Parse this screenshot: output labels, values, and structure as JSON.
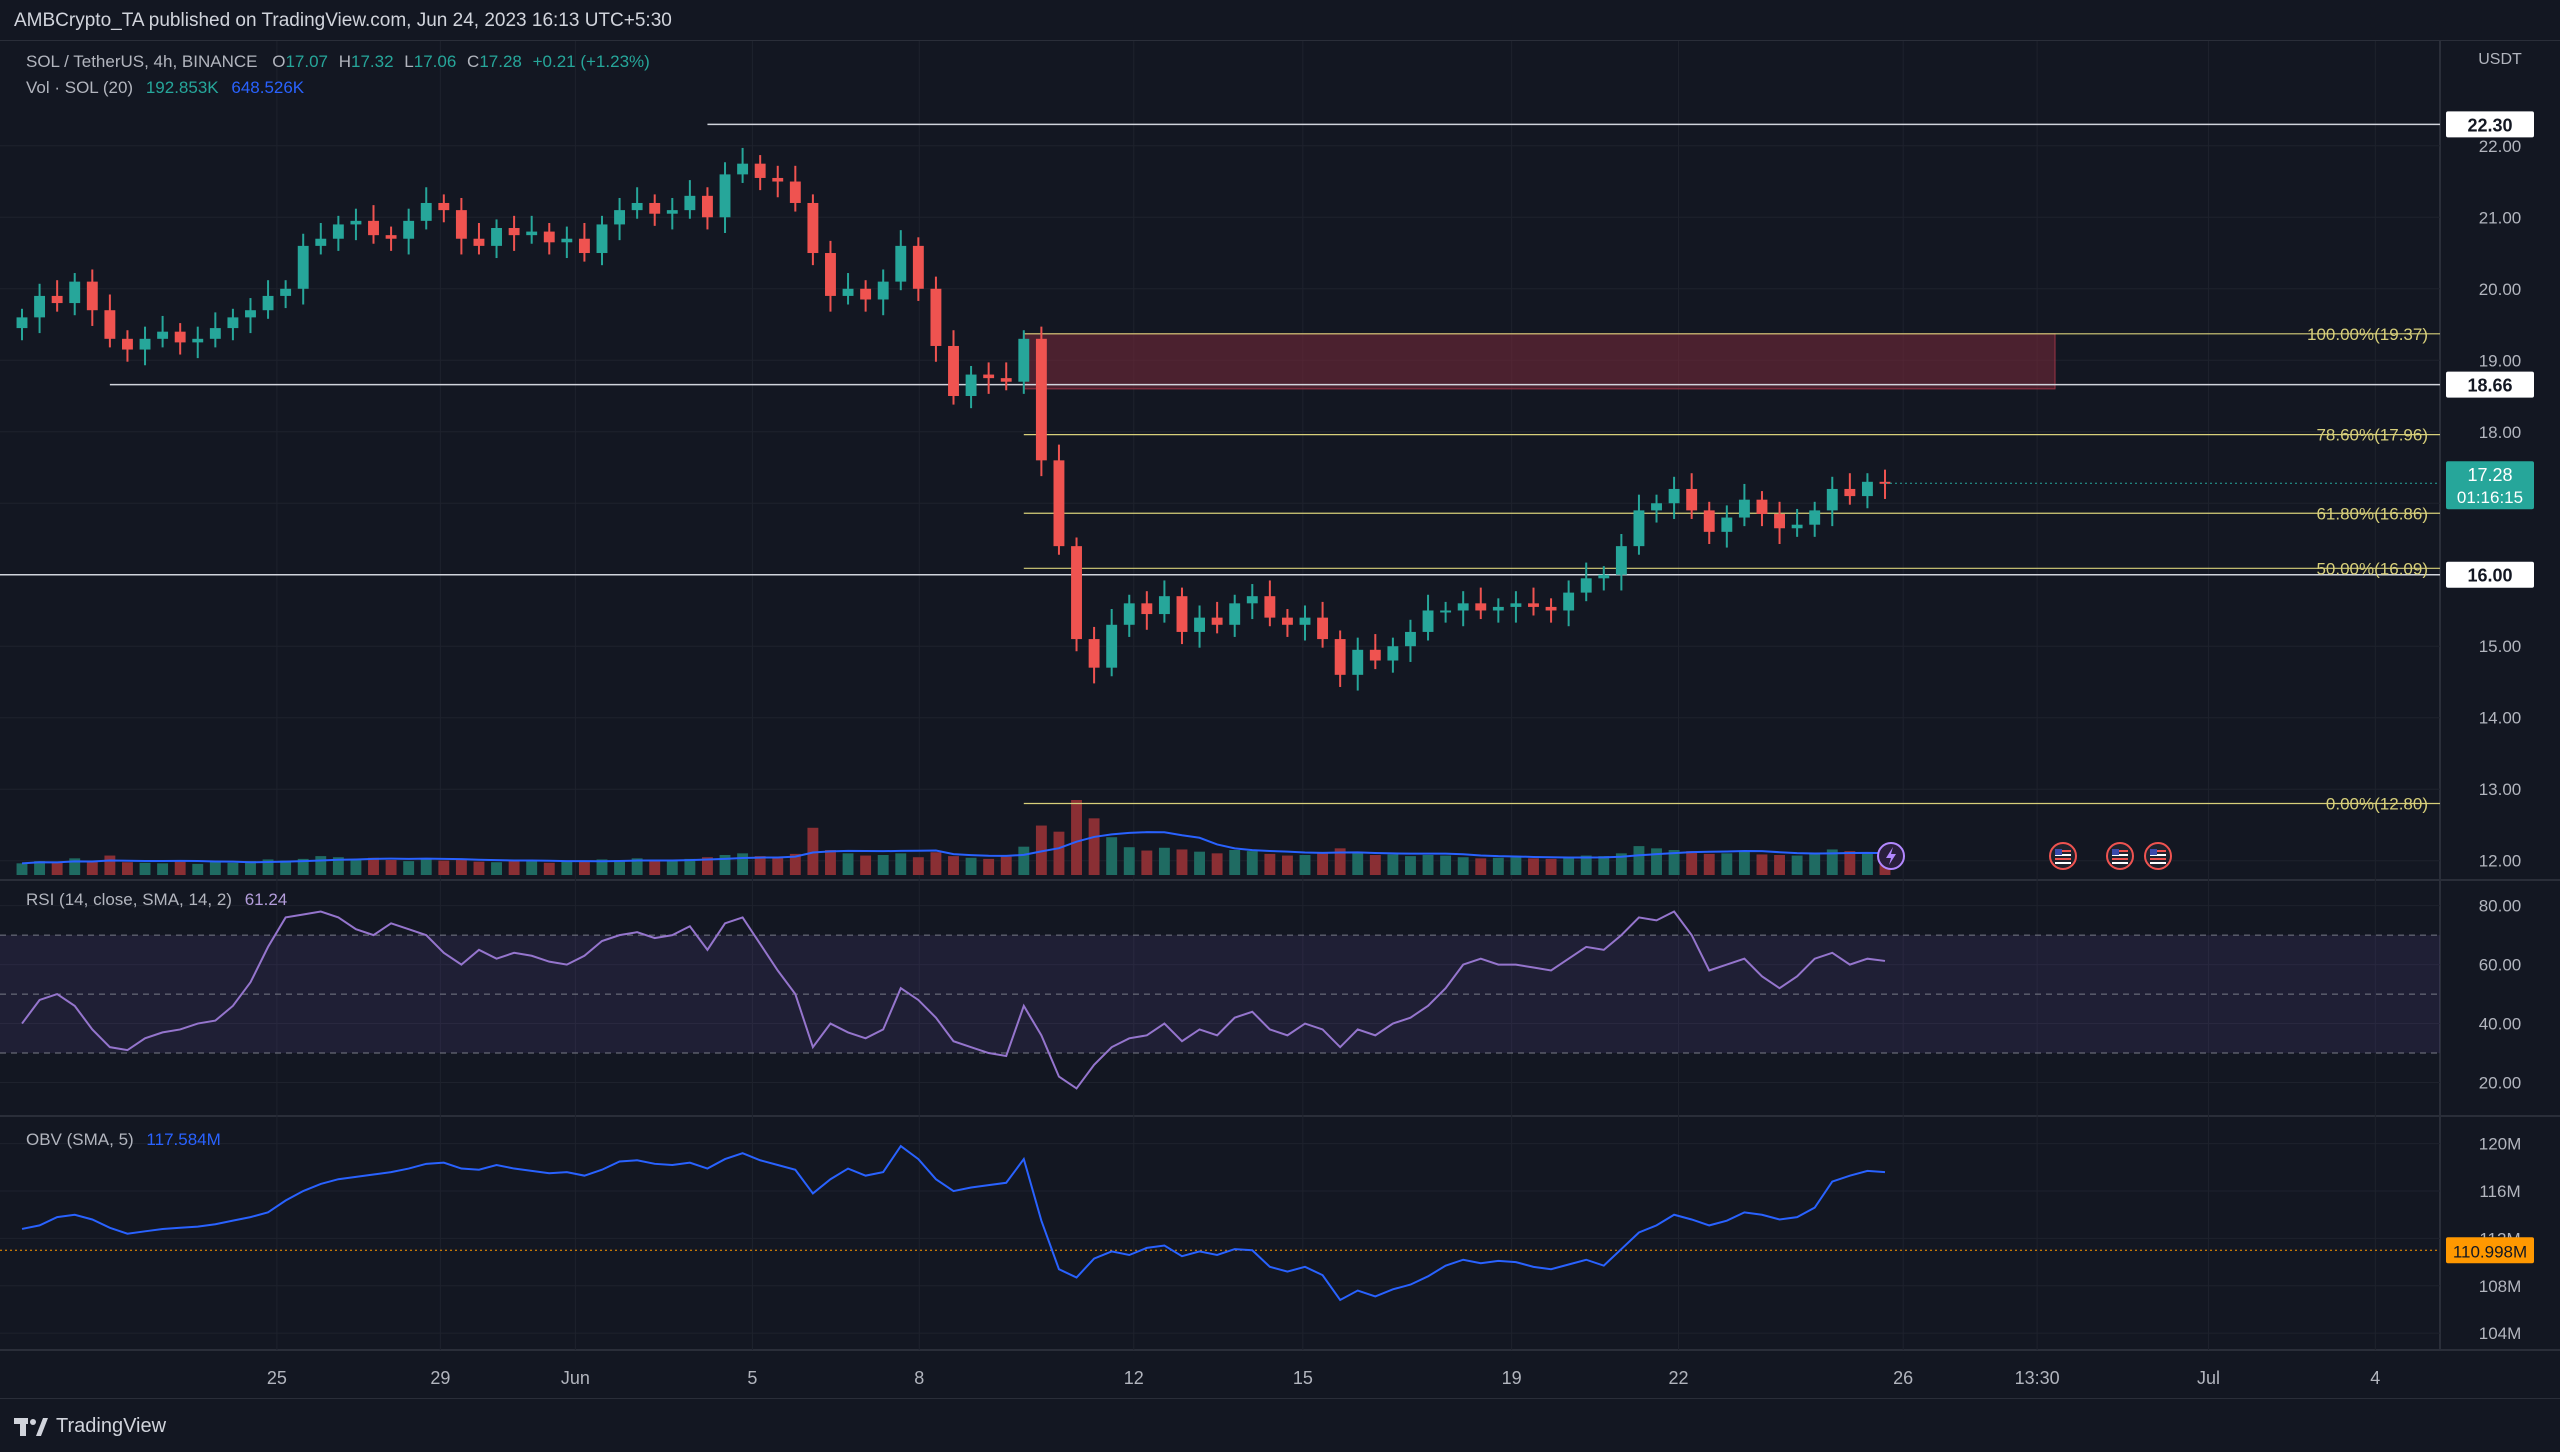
{
  "header": {
    "publisher": "AMBCrypto_TA published on TradingView.com, Jun 24, 2023 16:13 UTC+5:30"
  },
  "legend": {
    "symbol": "SOL / TetherUS, 4h, BINANCE",
    "o_label": "O",
    "o": "17.07",
    "h_label": "H",
    "h": "17.32",
    "l_label": "L",
    "l": "17.06",
    "c_label": "C",
    "c": "17.28",
    "change": "+0.21 (+1.23%)",
    "vol_label": "Vol · SOL (20)",
    "vol_value": "192.853K",
    "vol_ma": "648.526K",
    "rsi_label": "RSI (14, close, SMA, 14, 2)",
    "rsi_value": "61.24",
    "obv_label": "OBV (SMA, 5)",
    "obv_value": "117.584M"
  },
  "footer": {
    "brand": "TradingView"
  },
  "colors": {
    "background": "#131722",
    "up": "#26a69a",
    "down": "#ef5350",
    "fib": "#d7cf7a",
    "zone": "#7a2a3a",
    "rsi": "#9575cd",
    "obv": "#2962ff",
    "price_tag": "#26a69a",
    "obv_ref_tag": "#ff9800"
  },
  "chart_data": [
    {
      "type": "candlestick",
      "pane": "price",
      "currency": "USDT",
      "y_ticks": [
        "22.00",
        "21.00",
        "20.00",
        "19.00",
        "18.00",
        "17.00",
        "16.00",
        "15.00",
        "14.00",
        "13.00",
        "12.00"
      ],
      "ylim": [
        11.8,
        23.2
      ],
      "x_ticks": [
        "25",
        "29",
        "Jun",
        "5",
        "8",
        "12",
        "15",
        "19",
        "22",
        "26",
        "13:30",
        "Jul",
        "4"
      ],
      "x_tick_pos": [
        2.44,
        3.88,
        5.07,
        6.63,
        8.1,
        9.99,
        11.48,
        13.32,
        14.79,
        16.77,
        17.95,
        19.46,
        20.93
      ],
      "x_range": [
        0,
        21.5
      ],
      "closes": [
        19.6,
        19.9,
        19.8,
        20.1,
        19.7,
        19.3,
        19.15,
        19.3,
        19.4,
        19.25,
        19.3,
        19.45,
        19.6,
        19.7,
        19.9,
        20.0,
        20.6,
        20.7,
        20.9,
        20.95,
        20.75,
        20.7,
        20.95,
        21.2,
        21.1,
        20.7,
        20.6,
        20.85,
        20.75,
        20.8,
        20.65,
        20.7,
        20.5,
        20.9,
        21.1,
        21.2,
        21.05,
        21.1,
        21.3,
        21.0,
        21.6,
        21.75,
        21.55,
        21.5,
        21.2,
        20.5,
        19.9,
        20.0,
        19.85,
        20.1,
        20.6,
        20.0,
        19.2,
        18.5,
        18.8,
        18.75,
        18.7,
        19.3,
        17.6,
        16.4,
        15.1,
        14.7,
        15.3,
        15.6,
        15.45,
        15.7,
        15.2,
        15.4,
        15.3,
        15.6,
        15.7,
        15.4,
        15.3,
        15.4,
        15.1,
        14.6,
        14.95,
        14.8,
        15.0,
        15.2,
        15.5,
        15.5,
        15.6,
        15.5,
        15.55,
        15.6,
        15.55,
        15.5,
        15.75,
        15.95,
        16.0,
        16.4,
        16.9,
        17.0,
        17.2,
        16.9,
        16.6,
        16.8,
        17.05,
        16.85,
        16.65,
        16.7,
        16.9,
        17.2,
        17.1,
        17.3,
        17.28
      ],
      "volume": [
        2.1,
        2.5,
        2.2,
        3.0,
        2.4,
        3.5,
        2.3,
        2.2,
        2.1,
        2.6,
        2.0,
        2.4,
        2.2,
        2.5,
        2.8,
        2.6,
        2.9,
        3.4,
        3.2,
        2.8,
        3.1,
        2.7,
        2.5,
        3.0,
        2.6,
        2.9,
        2.4,
        2.3,
        2.5,
        2.6,
        2.2,
        2.4,
        2.6,
        2.8,
        2.7,
        3.0,
        2.5,
        2.6,
        2.9,
        3.2,
        3.6,
        3.9,
        3.4,
        3.1,
        3.8,
        8.5,
        4.5,
        3.9,
        3.5,
        3.6,
        3.9,
        3.2,
        4.1,
        3.4,
        3.1,
        2.9,
        3.3,
        5.1,
        8.9,
        7.8,
        13.5,
        10.2,
        6.8,
        5.0,
        4.4,
        4.9,
        4.6,
        4.2,
        3.9,
        4.5,
        4.3,
        3.8,
        3.5,
        3.6,
        4.0,
        4.8,
        4.1,
        3.6,
        3.7,
        3.4,
        3.6,
        3.5,
        3.2,
        3.0,
        3.1,
        3.2,
        3.0,
        2.9,
        3.3,
        3.5,
        3.4,
        3.9,
        5.2,
        4.8,
        4.5,
        4.3,
        3.8,
        3.9,
        4.2,
        3.7,
        3.6,
        3.5,
        3.9,
        4.6,
        4.3,
        4.1,
        3.8
      ],
      "volume_ma_values": "derived (20)",
      "levels": [
        {
          "label": "22.30",
          "value": 22.3,
          "color": "white"
        },
        {
          "label": "18.66",
          "value": 18.66,
          "color": "white"
        },
        {
          "label": "16.00",
          "value": 16.0,
          "color": "white"
        }
      ],
      "fibonacci": [
        {
          "label": "100.00%(19.37)",
          "value": 19.37
        },
        {
          "label": "78.60%(17.96)",
          "value": 17.96
        },
        {
          "label": "61.80%(16.86)",
          "value": 16.86
        },
        {
          "label": "50.00%(16.09)",
          "value": 16.09
        },
        {
          "label": "0.00%(12.80)",
          "value": 12.8
        }
      ],
      "supply_zone": {
        "from": 18.6,
        "to": 19.37
      },
      "last_price": "17.28",
      "countdown": "01:16:15",
      "event_icons": [
        "lightning-icon",
        "us-flag-icon",
        "us-flag-icon",
        "us-flag-icon"
      ]
    },
    {
      "type": "line",
      "pane": "rsi",
      "y_ticks": [
        "80.00",
        "60.00",
        "40.00",
        "20.00"
      ],
      "ylim": [
        10,
        87
      ],
      "band": [
        30,
        70
      ],
      "midline": 50,
      "values": [
        40,
        48,
        50,
        46,
        38,
        32,
        31,
        35,
        37,
        38,
        40,
        41,
        46,
        54,
        66,
        76,
        77,
        78,
        76,
        72,
        70,
        74,
        72,
        70,
        64,
        60,
        65,
        62,
        64,
        63,
        61,
        60,
        63,
        68,
        70,
        71,
        69,
        70,
        73,
        65,
        74,
        76,
        67,
        58,
        50,
        32,
        40,
        37,
        35,
        38,
        52,
        48,
        42,
        34,
        32,
        30,
        29,
        46,
        36,
        22,
        18,
        26,
        32,
        35,
        36,
        40,
        34,
        38,
        36,
        42,
        44,
        38,
        36,
        40,
        38,
        32,
        38,
        36,
        40,
        42,
        46,
        52,
        60,
        62,
        60,
        60,
        59,
        58,
        62,
        66,
        65,
        70,
        76,
        75,
        78,
        70,
        58,
        60,
        62,
        56,
        52,
        56,
        62,
        64,
        60,
        62,
        61.24
      ]
    },
    {
      "type": "line",
      "pane": "obv",
      "y_ticks": [
        "120M",
        "116M",
        "112M",
        "108M",
        "104M"
      ],
      "ylim": [
        103,
        122
      ],
      "reference_level": {
        "label": "110.998M",
        "value": 110.998
      },
      "values": [
        112.8,
        113.1,
        113.8,
        114.0,
        113.6,
        112.9,
        112.4,
        112.6,
        112.8,
        112.9,
        113.0,
        113.2,
        113.5,
        113.8,
        114.2,
        115.2,
        116.0,
        116.6,
        117.0,
        117.2,
        117.4,
        117.6,
        117.9,
        118.3,
        118.4,
        117.9,
        117.8,
        118.2,
        117.9,
        117.7,
        117.5,
        117.6,
        117.3,
        117.8,
        118.5,
        118.6,
        118.3,
        118.2,
        118.4,
        117.9,
        118.7,
        119.2,
        118.6,
        118.2,
        117.8,
        115.8,
        117.0,
        117.9,
        117.3,
        117.6,
        119.8,
        118.7,
        117.0,
        116.0,
        116.3,
        116.5,
        116.7,
        118.7,
        113.5,
        109.4,
        108.7,
        110.3,
        110.9,
        110.6,
        111.2,
        111.4,
        110.5,
        110.9,
        110.6,
        111.1,
        111.0,
        109.6,
        109.2,
        109.6,
        108.9,
        106.8,
        107.6,
        107.1,
        107.7,
        108.1,
        108.8,
        109.7,
        110.2,
        109.9,
        110.1,
        110.0,
        109.6,
        109.4,
        109.8,
        110.2,
        109.7,
        111.1,
        112.5,
        113.1,
        114.0,
        113.6,
        113.1,
        113.5,
        114.2,
        114.0,
        113.6,
        113.8,
        114.6,
        116.8,
        117.3,
        117.7,
        117.6
      ]
    }
  ]
}
